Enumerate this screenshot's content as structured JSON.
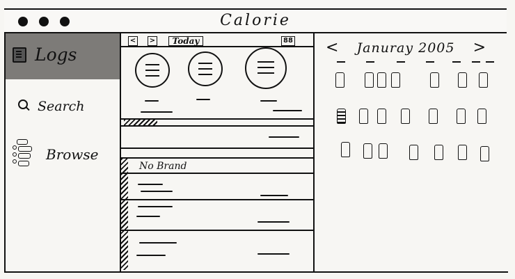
{
  "window": {
    "title": "Calorie"
  },
  "sidebar": {
    "items": [
      {
        "label": "Logs",
        "icon": "book-icon",
        "selected": true
      },
      {
        "label": "Search",
        "icon": "search-icon",
        "selected": false
      },
      {
        "label": "Browse",
        "icon": "list-icon",
        "selected": false
      }
    ]
  },
  "toolbar": {
    "prev_label": "<",
    "next_label": ">",
    "today_label": "Today",
    "grid_label": "88"
  },
  "food_list": {
    "brand_header": "No Brand"
  },
  "calendar": {
    "prev_label": "<",
    "month_title": "Januray 2005",
    "next_label": ">"
  },
  "colors": {
    "selected_nav_bg": "#7d7b78",
    "ink": "#111111",
    "paper": "#f7f6f3"
  }
}
